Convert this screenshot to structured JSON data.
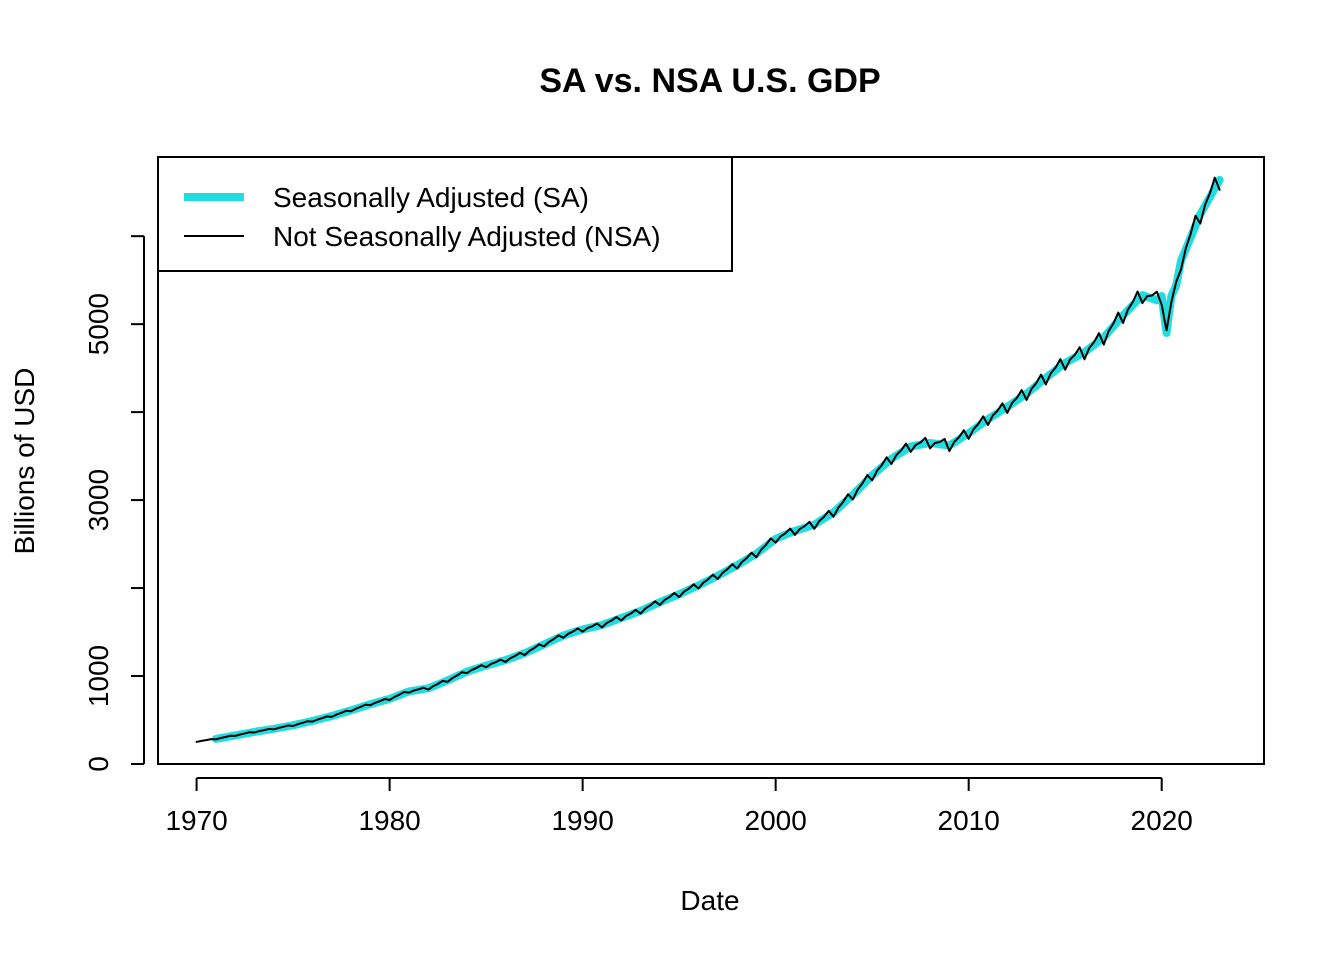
{
  "chart_data": {
    "type": "line",
    "title": "SA vs. NSA U.S. GDP",
    "xlabel": "Date",
    "ylabel": "Billions of USD",
    "xlim": [
      1968,
      2025.3
    ],
    "ylim": [
      0,
      6900
    ],
    "x_ticks": [
      1970,
      1980,
      1990,
      2000,
      2010,
      2020
    ],
    "y_ticks": [
      0,
      1000,
      2000,
      3000,
      4000,
      5000,
      6000
    ],
    "y_tick_labels": [
      "0",
      "1000",
      "",
      "3000",
      "",
      "5000",
      ""
    ],
    "legend_position": "top-left",
    "anchors": {
      "years": [
        1970,
        1971,
        1972,
        1973,
        1974,
        1975,
        1976,
        1977,
        1978,
        1979,
        1980,
        1981,
        1982,
        1983,
        1984,
        1985,
        1986,
        1987,
        1988,
        1989,
        1990,
        1991,
        1992,
        1993,
        1994,
        1995,
        1996,
        1997,
        1998,
        1999,
        2000,
        2001,
        2002,
        2003,
        2004,
        2005,
        2006,
        2007,
        2008,
        2009,
        2010,
        2011,
        2012,
        2013,
        2014,
        2015,
        2016,
        2017,
        2018,
        2019,
        2020,
        2021,
        2022,
        2023
      ],
      "values": [
        255,
        285,
        325,
        365,
        400,
        440,
        490,
        545,
        610,
        680,
        740,
        825,
        860,
        950,
        1050,
        1120,
        1180,
        1260,
        1360,
        1460,
        1530,
        1580,
        1660,
        1740,
        1840,
        1930,
        2030,
        2140,
        2260,
        2390,
        2560,
        2650,
        2720,
        2860,
        3060,
        3280,
        3470,
        3610,
        3650,
        3620,
        3760,
        3920,
        4060,
        4210,
        4390,
        4560,
        4680,
        4850,
        5100,
        5330,
        5250,
        5720,
        6250,
        6640
      ]
    },
    "covid_dip": {
      "x": [
        2020.0,
        2020.25,
        2020.5,
        2020.75
      ],
      "sa_values": [
        5320,
        4900,
        5320,
        5440
      ],
      "nsa_values": [
        5220,
        4930,
        5250,
        5480
      ]
    },
    "series": [
      {
        "name": "Seasonally Adjusted (SA)",
        "color": "#22dde0",
        "line_width": 8,
        "x_start": 1971.0,
        "x_end": 2023.0,
        "amplitude": 0,
        "phase_offsets": [
          0,
          0,
          0,
          0
        ]
      },
      {
        "name": "Not Seasonally Adjusted (NSA)",
        "color": "#000000",
        "line_width": 2,
        "x_start": 1970.0,
        "x_end": 2023.0,
        "amplitude": 0.017,
        "phase_offsets": [
          -1,
          0.1,
          0.4,
          1.1
        ]
      }
    ]
  }
}
